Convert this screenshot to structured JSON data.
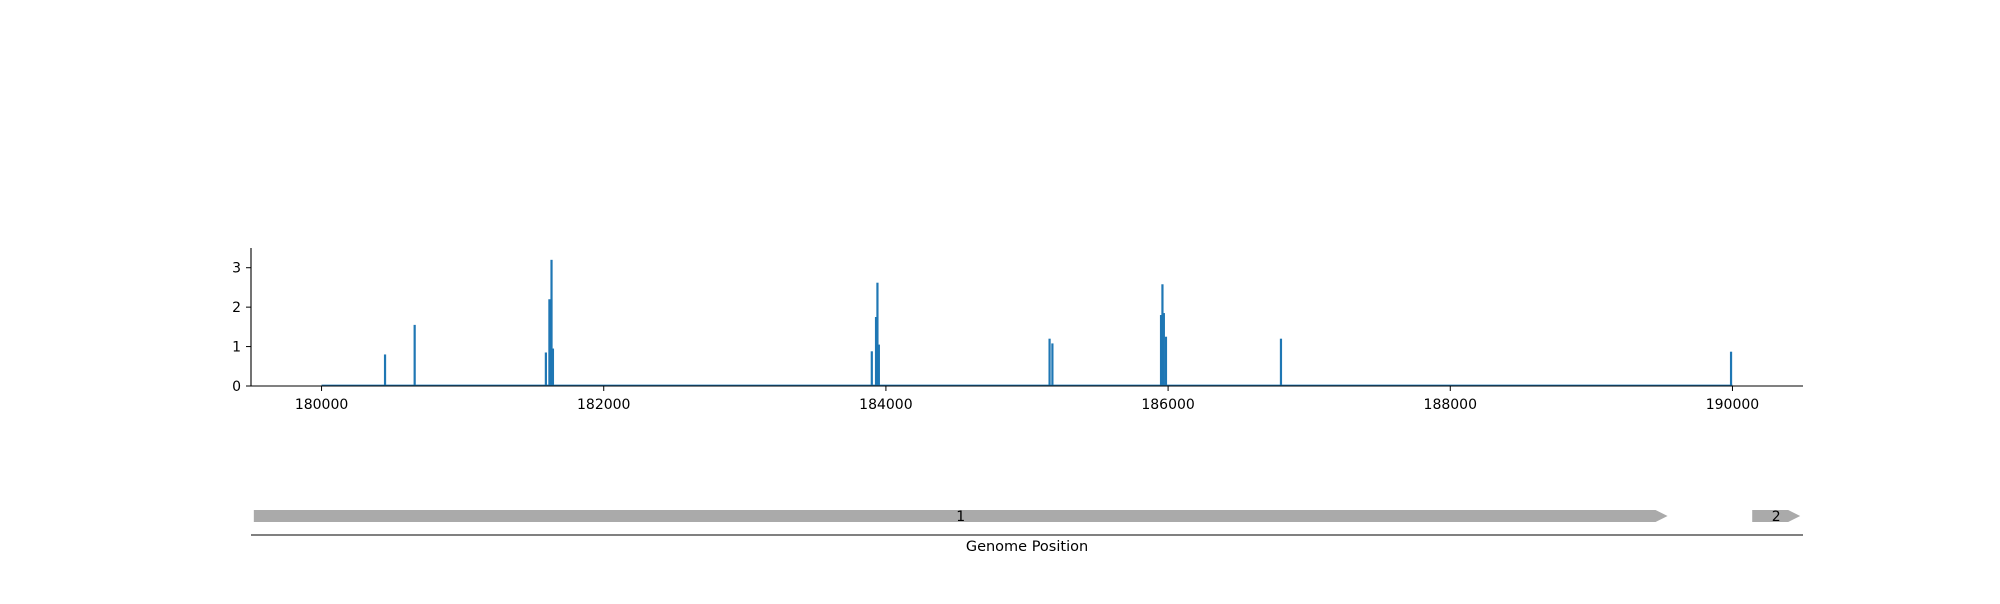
{
  "chart_data": {
    "type": "bar",
    "title": "",
    "xlabel": "Genome Position",
    "ylabel": "",
    "xlim": [
      179500,
      190500
    ],
    "ylim": [
      0,
      3.5
    ],
    "xticks": [
      180000,
      182000,
      184000,
      186000,
      188000,
      190000
    ],
    "yticks": [
      0,
      1,
      2,
      3
    ],
    "grid": false,
    "series": [
      {
        "color": "#1f77b4",
        "points": [
          {
            "x": 180450,
            "y": 0.8
          },
          {
            "x": 180660,
            "y": 1.55
          },
          {
            "x": 181590,
            "y": 0.85
          },
          {
            "x": 181615,
            "y": 2.2
          },
          {
            "x": 181630,
            "y": 3.2
          },
          {
            "x": 181640,
            "y": 0.95
          },
          {
            "x": 183900,
            "y": 0.88
          },
          {
            "x": 183930,
            "y": 1.75
          },
          {
            "x": 183940,
            "y": 2.62
          },
          {
            "x": 183950,
            "y": 1.05
          },
          {
            "x": 185160,
            "y": 1.2
          },
          {
            "x": 185180,
            "y": 1.08
          },
          {
            "x": 185950,
            "y": 1.8
          },
          {
            "x": 185960,
            "y": 2.58
          },
          {
            "x": 185970,
            "y": 1.85
          },
          {
            "x": 185985,
            "y": 1.25
          },
          {
            "x": 186800,
            "y": 1.2
          },
          {
            "x": 189990,
            "y": 0.87
          }
        ]
      }
    ],
    "genes": [
      {
        "label": "1",
        "start": 179520,
        "end": 189540,
        "color": "#aaaaaa"
      },
      {
        "label": "2",
        "start": 190140,
        "end": 190480,
        "color": "#aaaaaa"
      }
    ]
  }
}
